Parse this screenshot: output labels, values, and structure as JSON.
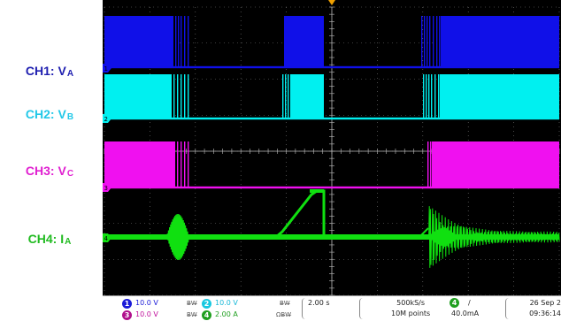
{
  "labels": {
    "ch1": {
      "prefix": "CH1: V",
      "sub": "A",
      "color": "#1f1fb0"
    },
    "ch2": {
      "prefix": "CH2: V",
      "sub": "B",
      "color": "#22c8e8"
    },
    "ch3": {
      "prefix": "CH3: V",
      "sub": "C",
      "color": "#e01fd0"
    },
    "ch4": {
      "prefix": "CH4: I",
      "sub": "A",
      "color": "#22bb22"
    }
  },
  "colors": {
    "ch1": "#1010e8",
    "ch2": "#00f0f0",
    "ch3": "#f010f0",
    "ch4": "#10e010",
    "grid": "#7a7a7a",
    "trigger": "#f0a000"
  },
  "status": {
    "ch1_num": "1",
    "ch1_scale": "10.0 V",
    "ch2_num": "2",
    "ch2_scale": "10.0 V",
    "ch3_num": "3",
    "ch3_scale": "10.0 V",
    "ch4_num": "4",
    "ch4_scale": "2.00 A",
    "ch4_imp": "Ω",
    "bw_limit": "B̶W̶",
    "timebase": "2.00 s",
    "sample_rate": "500kS/s",
    "record_length": "10M points",
    "trigger_ch": "4",
    "trigger_slope": "/",
    "trigger_level": "40.0mA",
    "date": "26 Sep 2",
    "time": "09:36:14"
  }
}
